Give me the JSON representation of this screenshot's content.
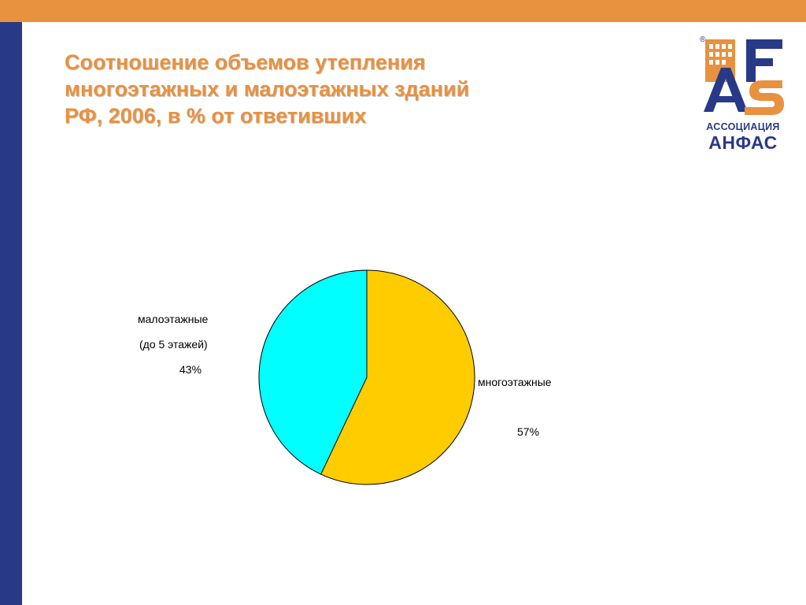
{
  "slide": {
    "title_lines": [
      "Соотношение объемов утепления",
      "многоэтажных и малоэтажных зданий",
      "РФ, 2006, в % от ответивших"
    ]
  },
  "logo": {
    "registered": "®",
    "subtitle": "АССОЦИАЦИЯ",
    "name": "АНФАС"
  },
  "colors": {
    "accent_orange": "#E8913F",
    "accent_navy": "#283A87"
  },
  "chart_data": {
    "type": "pie",
    "title": "",
    "slices": [
      {
        "label_lines": [
          "многоэтажные"
        ],
        "value": 57,
        "value_label": "57%",
        "color": "#FFCC00"
      },
      {
        "label_lines": [
          "малоэтажные",
          "(до 5 этажей)"
        ],
        "value": 43,
        "value_label": "43%",
        "color": "#00FFFF"
      }
    ],
    "legend": "none"
  }
}
